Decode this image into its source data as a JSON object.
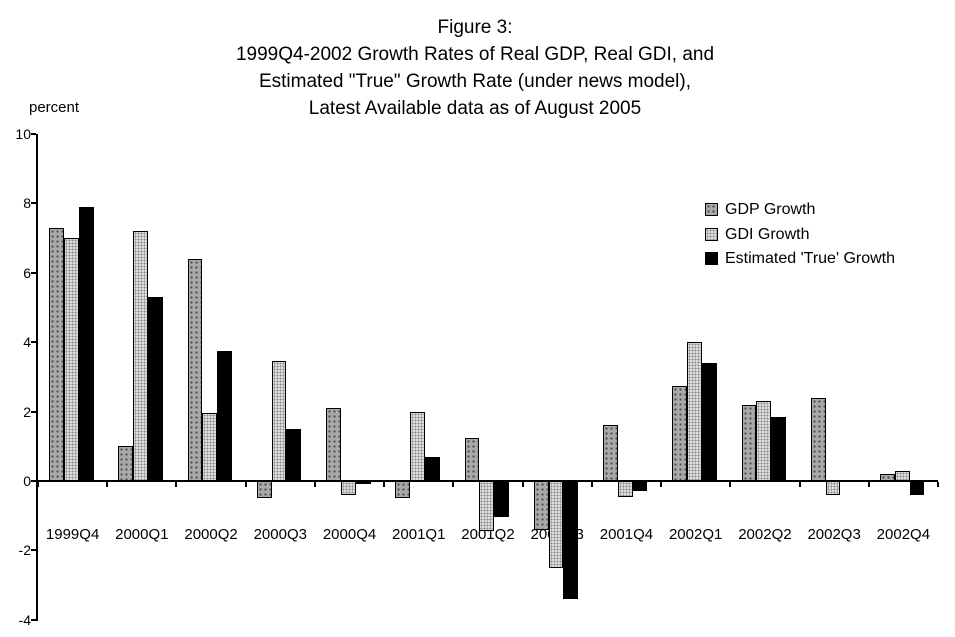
{
  "chart_data": {
    "type": "bar",
    "title_lines": [
      "Figure 3:",
      "1999Q4-2002 Growth Rates of Real GDP, Real GDI, and",
      "Estimated \"True\" Growth Rate (under news model),",
      "Latest Available data as of August 2005"
    ],
    "ylabel": "percent",
    "xlabel": "",
    "categories": [
      "1999Q4",
      "2000Q1",
      "2000Q2",
      "2000Q3",
      "2000Q4",
      "2001Q1",
      "2001Q2",
      "2001Q3",
      "2001Q4",
      "2002Q1",
      "2002Q2",
      "2002Q3",
      "2002Q4"
    ],
    "series": [
      {
        "key": "gdp",
        "name": "GDP Growth",
        "values": [
          7.3,
          1.0,
          6.4,
          -0.5,
          2.1,
          -0.5,
          1.25,
          -1.4,
          1.6,
          2.75,
          2.2,
          2.4,
          0.2
        ]
      },
      {
        "key": "gdi",
        "name": "GDI Growth",
        "values": [
          7.0,
          7.2,
          1.95,
          3.45,
          -0.4,
          2.0,
          -1.45,
          -2.5,
          -0.45,
          4.0,
          2.3,
          -0.4,
          0.3
        ]
      },
      {
        "key": "true",
        "name": "Estimated 'True' Growth",
        "values": [
          7.9,
          5.3,
          3.75,
          1.5,
          -0.1,
          0.7,
          -1.05,
          -3.4,
          -0.3,
          3.4,
          1.85,
          0.0,
          -0.4
        ]
      }
    ],
    "yticks": [
      10,
      8,
      6,
      4,
      2,
      0,
      -2,
      -4
    ],
    "ylim": [
      -4,
      10
    ],
    "grid": false,
    "legend_position": "upper-right",
    "colors": {
      "gdp_fill": "#a9a9a9",
      "gdp_dot": "#4d4d4d",
      "gdi_fill": "#dcdcdc",
      "gdi_dot": "#8a8a8a",
      "true_fill": "#000000",
      "axis": "#000000",
      "background": "#ffffff"
    }
  }
}
